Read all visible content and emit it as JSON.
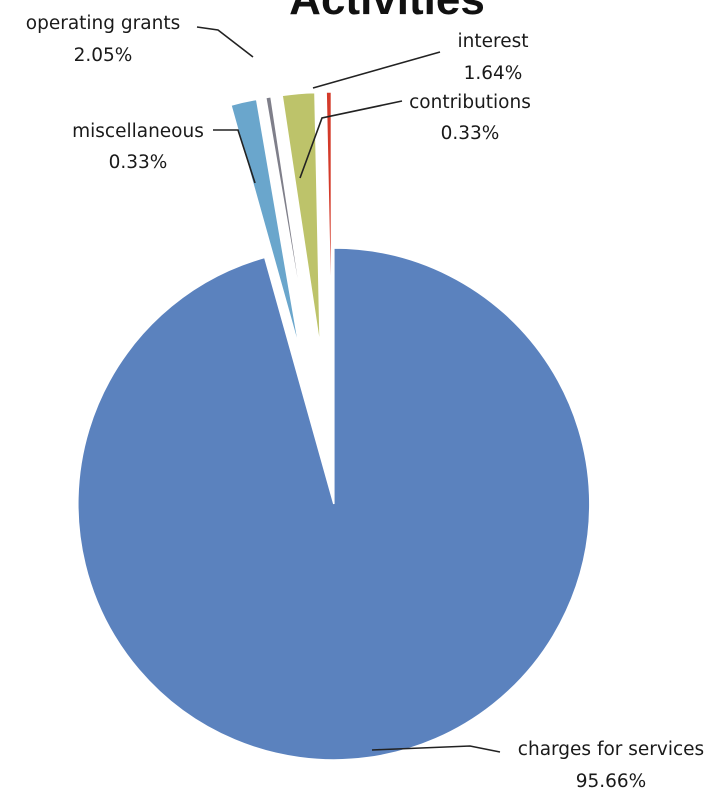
{
  "chart_data": {
    "type": "pie",
    "title": "Activities",
    "exploded": true,
    "slices": [
      {
        "name": "charges for services",
        "value": 95.66,
        "pct_label": "95.66%",
        "color": "#5b82be"
      },
      {
        "name": "interest",
        "value": 1.64,
        "pct_label": "1.64%",
        "color": "#6aa6cc"
      },
      {
        "name": "contributions",
        "value": 0.33,
        "pct_label": "0.33%",
        "color": "#7f7f8a"
      },
      {
        "name": "operating grants",
        "value": 2.05,
        "pct_label": "2.05%",
        "color": "#bdc36a"
      },
      {
        "name": "miscellaneous",
        "value": 0.33,
        "pct_label": "0.33%",
        "color": "#d43a2a"
      }
    ]
  }
}
